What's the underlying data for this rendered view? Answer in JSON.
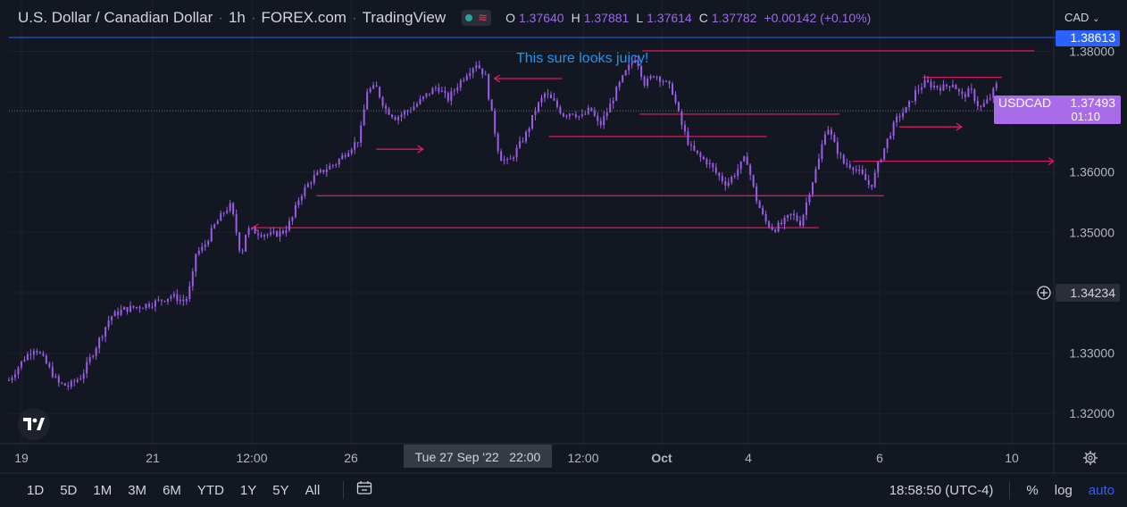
{
  "header": {
    "symbol": "U.S. Dollar / Canadian Dollar",
    "interval": "1h",
    "exchange": "FOREX.com",
    "platform": "TradingView",
    "ohlc": {
      "o_label": "O",
      "o": "1.37640",
      "h_label": "H",
      "h": "1.37881",
      "l_label": "L",
      "l": "1.37614",
      "c_label": "C",
      "c": "1.37782",
      "change": "+0.00142 (+0.10%)"
    }
  },
  "currency_menu": "CAD",
  "annotation_text": "This sure looks juicy!",
  "price_labels": {
    "top_line": "1.38613",
    "symbol_tag": "USDCAD",
    "current": "1.37493",
    "countdown": "01:10",
    "crosshair": "1.34234"
  },
  "x_labels": [
    "19",
    "21",
    "12:00",
    "26",
    "12:00",
    "Oct",
    "4",
    "6",
    "10"
  ],
  "crosshair_time": "Tue 27 Sep '22   22:00",
  "bottom_bar": {
    "timeframes": [
      "1D",
      "5D",
      "1M",
      "3M",
      "6M",
      "YTD",
      "1Y",
      "5Y",
      "All"
    ],
    "clock": "18:58:50 (UTC-4)",
    "percent": "%",
    "log": "log",
    "auto": "auto"
  },
  "colors": {
    "background": "#131722",
    "candle": "#9c5ce6",
    "lines": "#e91e63",
    "annotation": "#2196f3",
    "top_line": "#2962ff"
  },
  "chart_data": {
    "type": "candlestick",
    "ylim": [
      1.315,
      1.3885
    ],
    "y_ticks": [
      "1.38000",
      "1.37000",
      "1.36000",
      "1.35000",
      "1.34000",
      "1.33000",
      "1.32000"
    ],
    "close_path": [
      [
        0,
        1.3255
      ],
      [
        1.2,
        1.3292
      ],
      [
        2.0,
        1.331
      ],
      [
        2.8,
        1.3285
      ],
      [
        3.8,
        1.325
      ],
      [
        4.6,
        1.3245
      ],
      [
        5.6,
        1.3262
      ],
      [
        6.8,
        1.3315
      ],
      [
        7.8,
        1.336
      ],
      [
        8.8,
        1.3372
      ],
      [
        10.2,
        1.3378
      ],
      [
        11.4,
        1.3385
      ],
      [
        12.5,
        1.3395
      ],
      [
        13.6,
        1.3385
      ],
      [
        14.1,
        1.342
      ],
      [
        14.4,
        1.3465
      ],
      [
        15.0,
        1.3475
      ],
      [
        15.8,
        1.351
      ],
      [
        16.6,
        1.3535
      ],
      [
        17.1,
        1.3545
      ],
      [
        17.6,
        1.3492
      ],
      [
        17.9,
        1.346
      ],
      [
        18.3,
        1.3505
      ],
      [
        19.2,
        1.35
      ],
      [
        20.2,
        1.3495
      ],
      [
        21.2,
        1.3502
      ],
      [
        21.8,
        1.3522
      ],
      [
        22.4,
        1.356
      ],
      [
        23.4,
        1.359
      ],
      [
        24.4,
        1.3605
      ],
      [
        25.2,
        1.3615
      ],
      [
        26.2,
        1.3638
      ],
      [
        27.0,
        1.3655
      ],
      [
        27.6,
        1.3735
      ],
      [
        28.3,
        1.374
      ],
      [
        29.0,
        1.3705
      ],
      [
        29.8,
        1.369
      ],
      [
        30.6,
        1.37
      ],
      [
        31.4,
        1.3712
      ],
      [
        32.2,
        1.3728
      ],
      [
        33.0,
        1.3742
      ],
      [
        33.8,
        1.372
      ],
      [
        34.5,
        1.3742
      ],
      [
        35.3,
        1.3765
      ],
      [
        36.0,
        1.378
      ],
      [
        36.7,
        1.376
      ],
      [
        37.2,
        1.3695
      ],
      [
        37.8,
        1.3625
      ],
      [
        38.5,
        1.3615
      ],
      [
        39.2,
        1.364
      ],
      [
        39.9,
        1.3665
      ],
      [
        40.6,
        1.3705
      ],
      [
        41.3,
        1.373
      ],
      [
        42.0,
        1.3715
      ],
      [
        42.7,
        1.3695
      ],
      [
        43.4,
        1.37
      ],
      [
        44.1,
        1.369
      ],
      [
        44.8,
        1.3705
      ],
      [
        45.5,
        1.3675
      ],
      [
        46.2,
        1.3705
      ],
      [
        46.9,
        1.374
      ],
      [
        47.6,
        1.3768
      ],
      [
        48.3,
        1.3792
      ],
      [
        49.0,
        1.3745
      ],
      [
        49.7,
        1.3762
      ],
      [
        50.4,
        1.3752
      ],
      [
        51.1,
        1.3735
      ],
      [
        51.8,
        1.368
      ],
      [
        52.5,
        1.364
      ],
      [
        53.2,
        1.3625
      ],
      [
        53.9,
        1.3615
      ],
      [
        54.6,
        1.3595
      ],
      [
        55.3,
        1.358
      ],
      [
        56.0,
        1.36
      ],
      [
        56.8,
        1.3625
      ],
      [
        57.5,
        1.356
      ],
      [
        58.2,
        1.352
      ],
      [
        58.9,
        1.3505
      ],
      [
        59.6,
        1.3515
      ],
      [
        60.3,
        1.353
      ],
      [
        61.0,
        1.3515
      ],
      [
        61.7,
        1.357
      ],
      [
        62.4,
        1.362
      ],
      [
        63.0,
        1.368
      ],
      [
        63.6,
        1.3645
      ],
      [
        64.3,
        1.3615
      ],
      [
        65.0,
        1.361
      ],
      [
        65.7,
        1.3595
      ],
      [
        66.4,
        1.3575
      ],
      [
        67.1,
        1.362
      ],
      [
        67.8,
        1.366
      ],
      [
        68.5,
        1.3692
      ],
      [
        69.2,
        1.3705
      ],
      [
        69.9,
        1.3735
      ],
      [
        70.6,
        1.3748
      ],
      [
        71.3,
        1.3742
      ],
      [
        72.0,
        1.374
      ],
      [
        72.7,
        1.3748
      ],
      [
        73.4,
        1.3725
      ],
      [
        74.1,
        1.3735
      ],
      [
        74.8,
        1.3705
      ],
      [
        75.5,
        1.372
      ],
      [
        76.2,
        1.3749
      ]
    ],
    "horizontal_lines": [
      {
        "x0": 48.8,
        "x1": 79.0,
        "y": 1.38008,
        "arrow": "none"
      },
      {
        "x0": 37.4,
        "x1": 42.6,
        "y": 1.37548,
        "arrow": "left"
      },
      {
        "x0": 70.4,
        "x1": 76.5,
        "y": 1.37568,
        "arrow": "none"
      },
      {
        "x0": 48.6,
        "x1": 64.0,
        "y": 1.36958,
        "arrow": "none"
      },
      {
        "x0": 68.6,
        "x1": 73.4,
        "y": 1.36748,
        "arrow": "right"
      },
      {
        "x0": 41.6,
        "x1": 58.4,
        "y": 1.36588,
        "arrow": "none"
      },
      {
        "x0": 28.3,
        "x1": 31.9,
        "y": 1.36378,
        "arrow": "right"
      },
      {
        "x0": 65.0,
        "x1": 80.5,
        "y": 1.36178,
        "arrow": "right"
      },
      {
        "x0": 23.7,
        "x1": 67.4,
        "y": 1.35608,
        "arrow": "none"
      },
      {
        "x0": 18.8,
        "x1": 62.4,
        "y": 1.35078,
        "arrow": "left"
      }
    ],
    "x_range": [
      0,
      80.5
    ]
  }
}
